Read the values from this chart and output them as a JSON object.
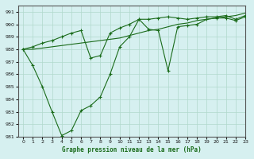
{
  "title": "Graphe pression niveau de la mer (hPa)",
  "bg_color": "#d6f0f0",
  "grid_color": "#b0d8cc",
  "line_color": "#1a6b1a",
  "xlim": [
    -0.5,
    23
  ],
  "ylim": [
    981,
    991.5
  ],
  "yticks": [
    981,
    982,
    983,
    984,
    985,
    986,
    987,
    988,
    989,
    990,
    991
  ],
  "xticks": [
    0,
    1,
    2,
    3,
    4,
    5,
    6,
    7,
    8,
    9,
    10,
    11,
    12,
    13,
    14,
    15,
    16,
    17,
    18,
    19,
    20,
    21,
    22,
    23
  ],
  "series1": [
    988.0,
    986.7,
    985.0,
    983.0,
    981.1,
    981.5,
    983.1,
    983.5,
    984.2,
    986.0,
    988.2,
    989.0,
    990.4,
    989.6,
    989.5,
    986.3,
    989.8,
    989.9,
    990.0,
    990.4,
    990.5,
    990.5,
    990.3,
    990.6
  ],
  "series2": [
    988.0,
    988.0,
    988.1,
    988.2,
    988.3,
    988.4,
    988.5,
    988.6,
    988.7,
    988.8,
    988.9,
    989.1,
    989.3,
    989.5,
    989.6,
    989.8,
    990.0,
    990.1,
    990.3,
    990.4,
    990.5,
    990.6,
    990.7,
    990.9
  ],
  "series3": [
    988.0,
    988.2,
    988.5,
    988.7,
    989.0,
    989.3,
    989.5,
    987.3,
    987.5,
    989.3,
    989.7,
    990.0,
    990.4,
    990.4,
    990.5,
    990.6,
    990.5,
    990.4,
    990.5,
    990.6,
    990.6,
    990.7,
    990.4,
    990.7
  ]
}
